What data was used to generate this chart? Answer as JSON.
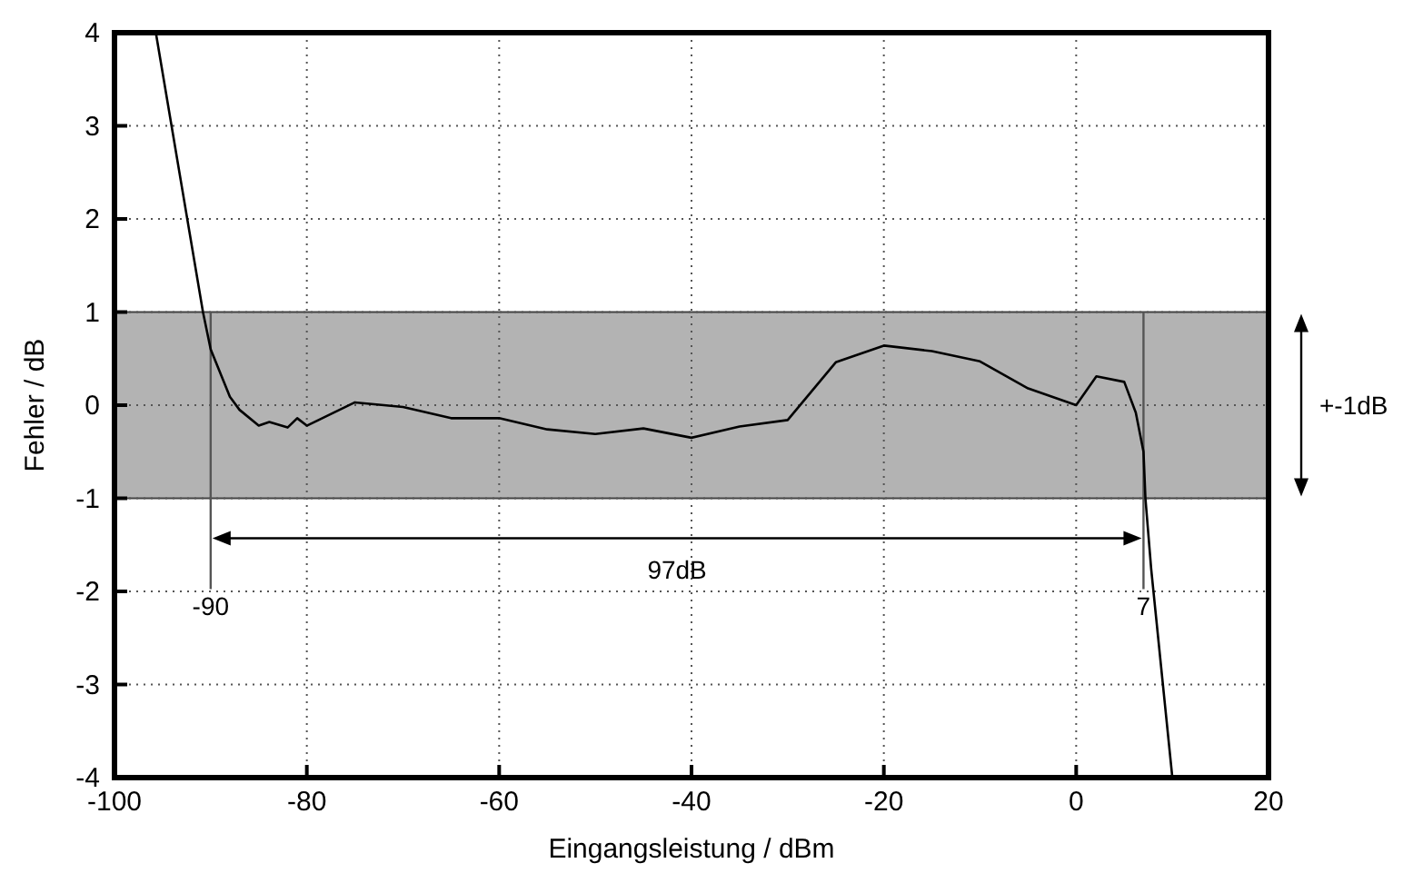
{
  "chart_data": {
    "type": "line",
    "xlabel": "Eingangsleistung  / dBm",
    "ylabel": "Fehler  / dB",
    "xlim": [
      -100,
      20
    ],
    "ylim": [
      -4,
      4
    ],
    "xticks": [
      -100,
      -80,
      -60,
      -40,
      -20,
      0,
      20
    ],
    "yticks": [
      -4,
      -3,
      -2,
      -1,
      0,
      1,
      2,
      3,
      4
    ],
    "grid": true,
    "series": [
      {
        "color": "#000000",
        "x": [
          -95.7,
          -90.8,
          -90,
          -88,
          -87,
          -85,
          -83.9,
          -82,
          -81,
          -80,
          -75,
          -70,
          -65,
          -60,
          -55,
          -50,
          -45,
          -40,
          -35,
          -30,
          -25,
          -20,
          -15,
          -10,
          -5,
          0,
          2.1,
          5,
          6.2,
          7,
          7.2,
          7.8,
          10
        ],
        "values": [
          4,
          1,
          0.6,
          0.09,
          -0.05,
          -0.22,
          -0.18,
          -0.24,
          -0.14,
          -0.22,
          0.03,
          -0.02,
          -0.14,
          -0.14,
          -0.26,
          -0.31,
          -0.25,
          -0.35,
          -0.23,
          -0.16,
          0.46,
          0.64,
          0.58,
          0.47,
          0.18,
          0,
          0.31,
          0.25,
          -0.08,
          -0.5,
          -1,
          -1.76,
          -4
        ]
      }
    ],
    "bands": [
      {
        "axis": "y",
        "from": -1,
        "to": 1,
        "label": "+-1dB",
        "color": "#b3b3b3"
      }
    ],
    "ref_lines": [
      {
        "axis": "x",
        "value": -90,
        "label": "-90"
      },
      {
        "axis": "x",
        "value": 7,
        "label": "7"
      }
    ],
    "annotations": [
      "97dB"
    ]
  }
}
